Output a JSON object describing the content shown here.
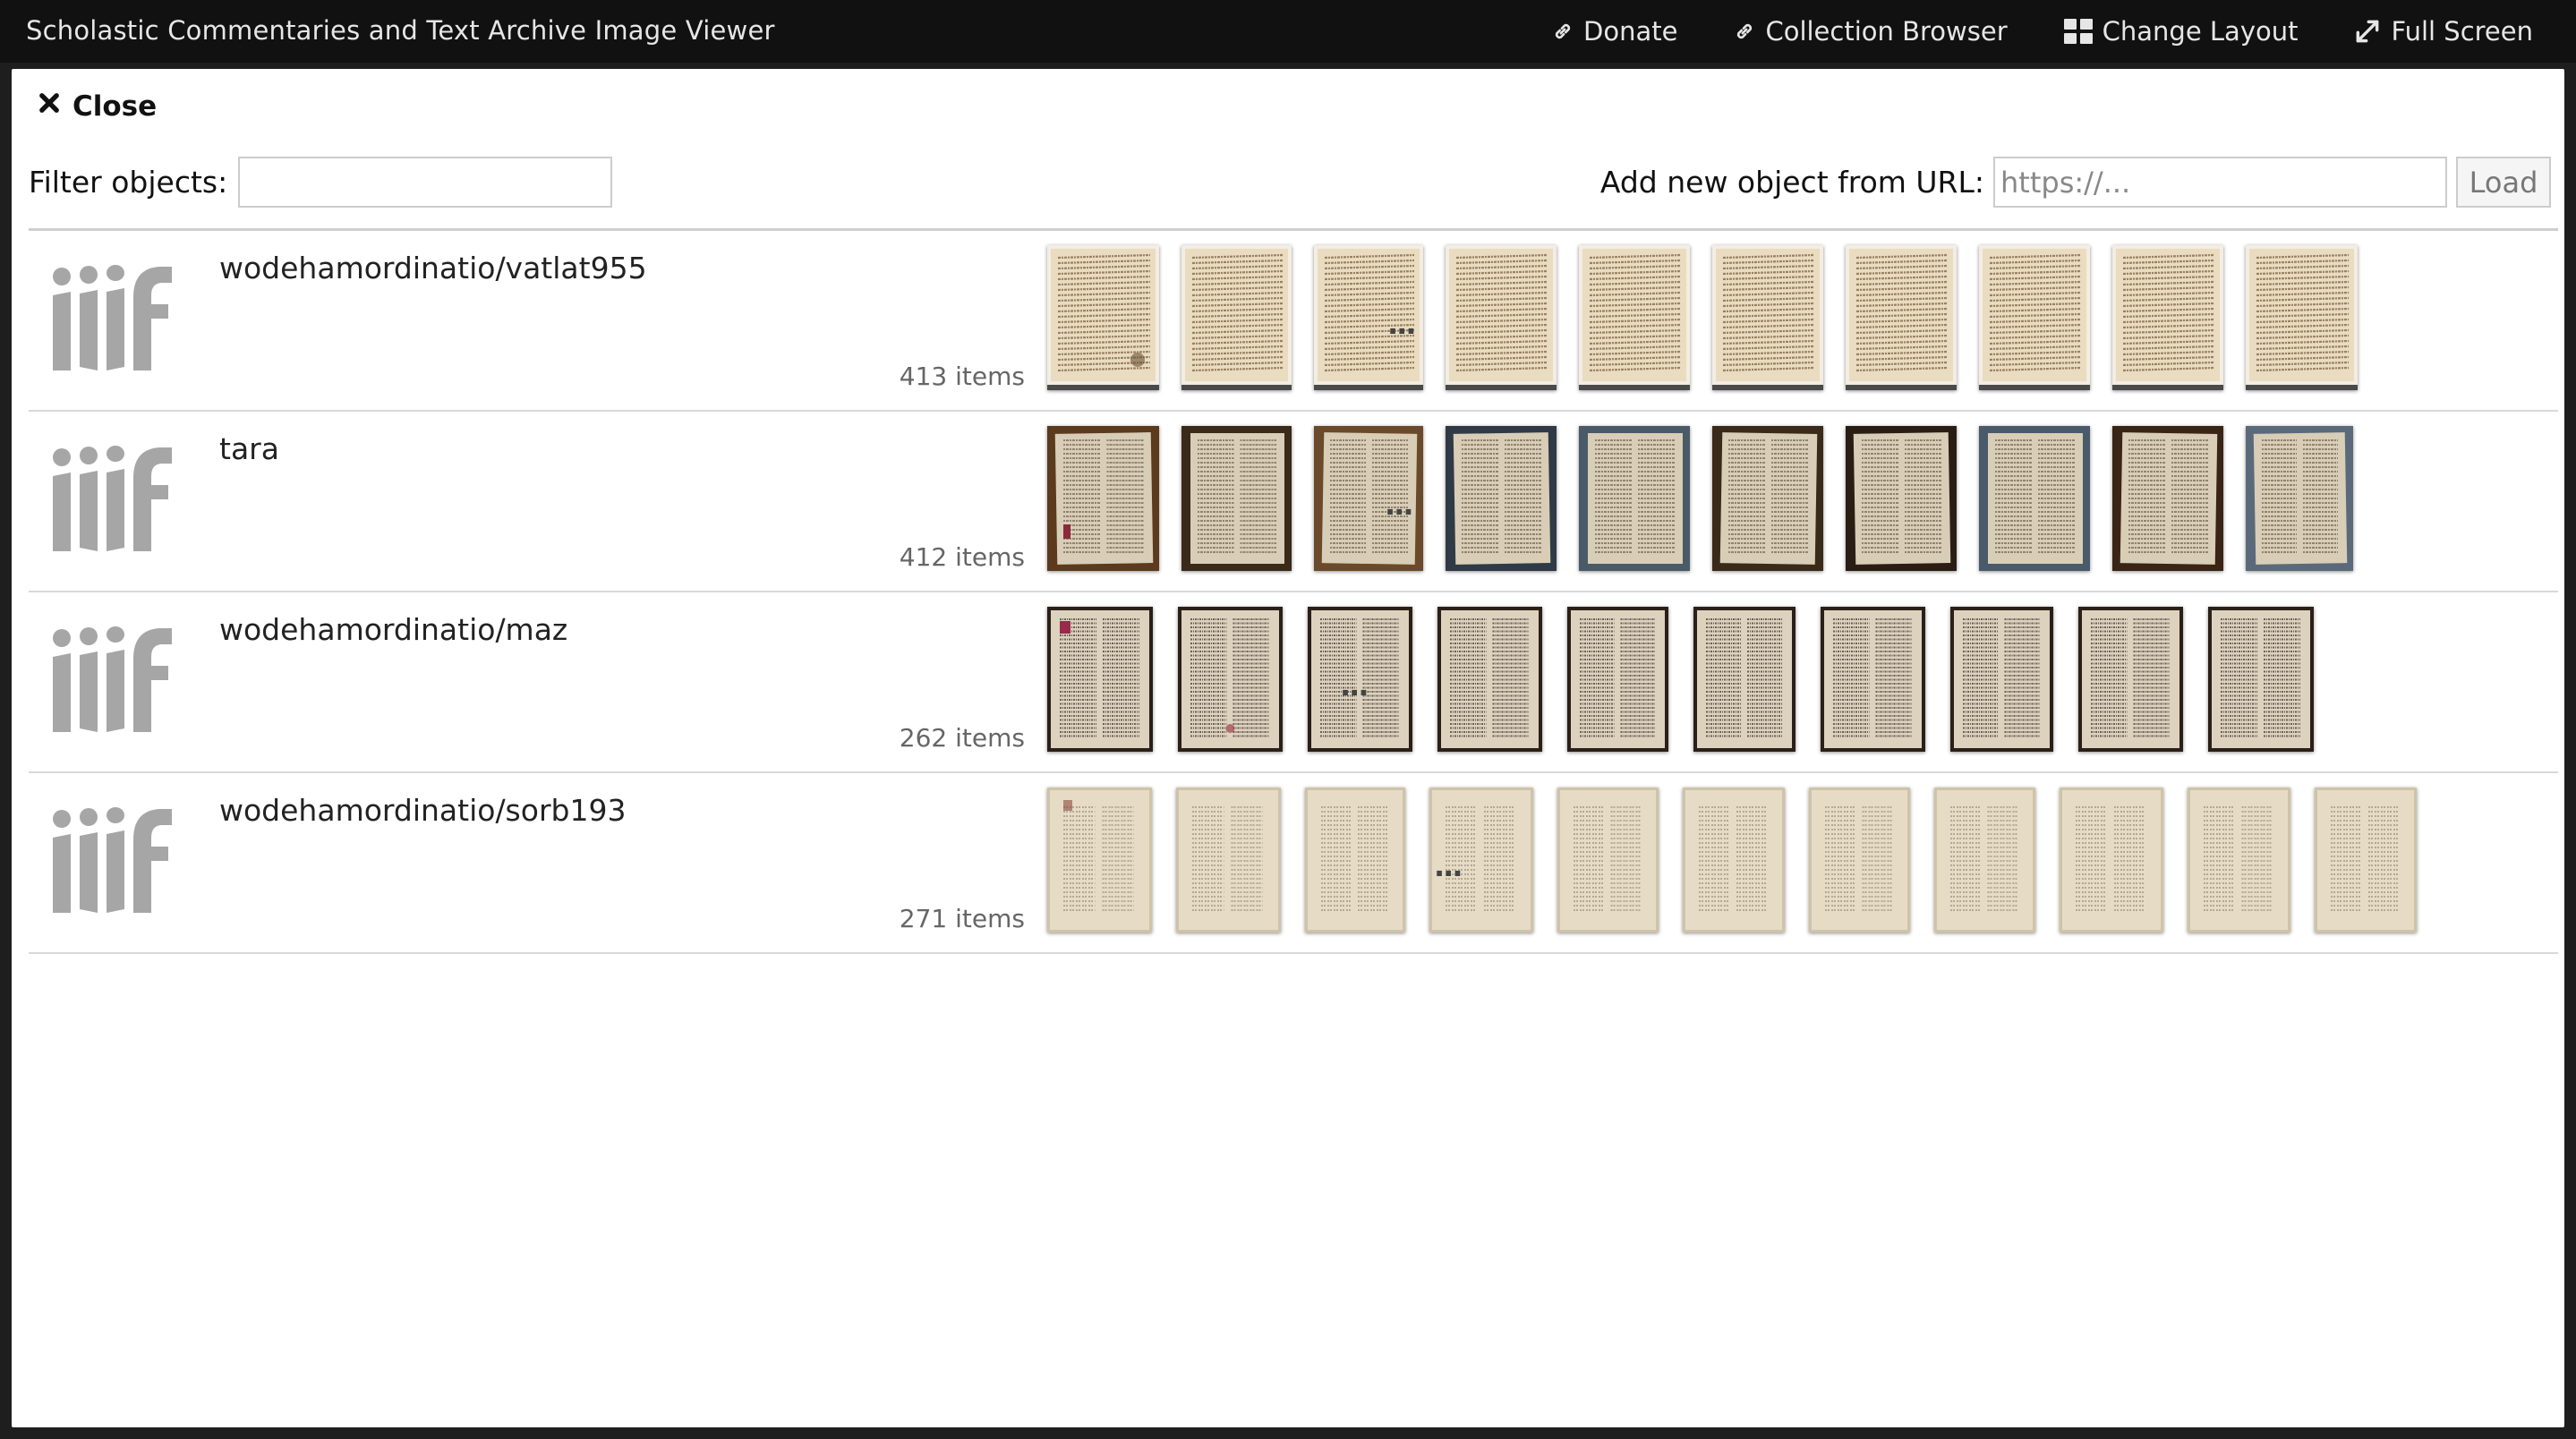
{
  "app": {
    "title": "Scholastic Commentaries and Text Archive Image Viewer"
  },
  "nav": {
    "donate": "Donate",
    "collection_browser": "Collection Browser",
    "change_layout": "Change Layout",
    "full_screen": "Full Screen"
  },
  "panel": {
    "close_label": "Close",
    "filter_label": "Filter objects:",
    "filter_value": "",
    "url_label": "Add new object from URL:",
    "url_placeholder": "https://...",
    "load_label": "Load"
  },
  "objects": [
    {
      "name": "wodehamordinatio/vatlat955",
      "count": "413 items",
      "more": "...",
      "thumb_count": 10,
      "style": "vat"
    },
    {
      "name": "tara",
      "count": "412 items",
      "more": "...",
      "thumb_count": 10,
      "style": "tara"
    },
    {
      "name": "wodehamordinatio/maz",
      "count": "262 items",
      "more": "...",
      "thumb_count": 10,
      "style": "maz"
    },
    {
      "name": "wodehamordinatio/sorb193",
      "count": "271 items",
      "more": "...",
      "thumb_count": 11,
      "style": "sorb"
    }
  ],
  "colors": {
    "topbar_bg": "#111111",
    "panel_bg": "#ffffff",
    "logo_gray": "#a6a6a6",
    "vat_parchment": "#e9dcc0",
    "tara_bg": "#6a4a2a",
    "maz_bg": "#2a2018",
    "sorb_parchment": "#e6dcc6"
  }
}
